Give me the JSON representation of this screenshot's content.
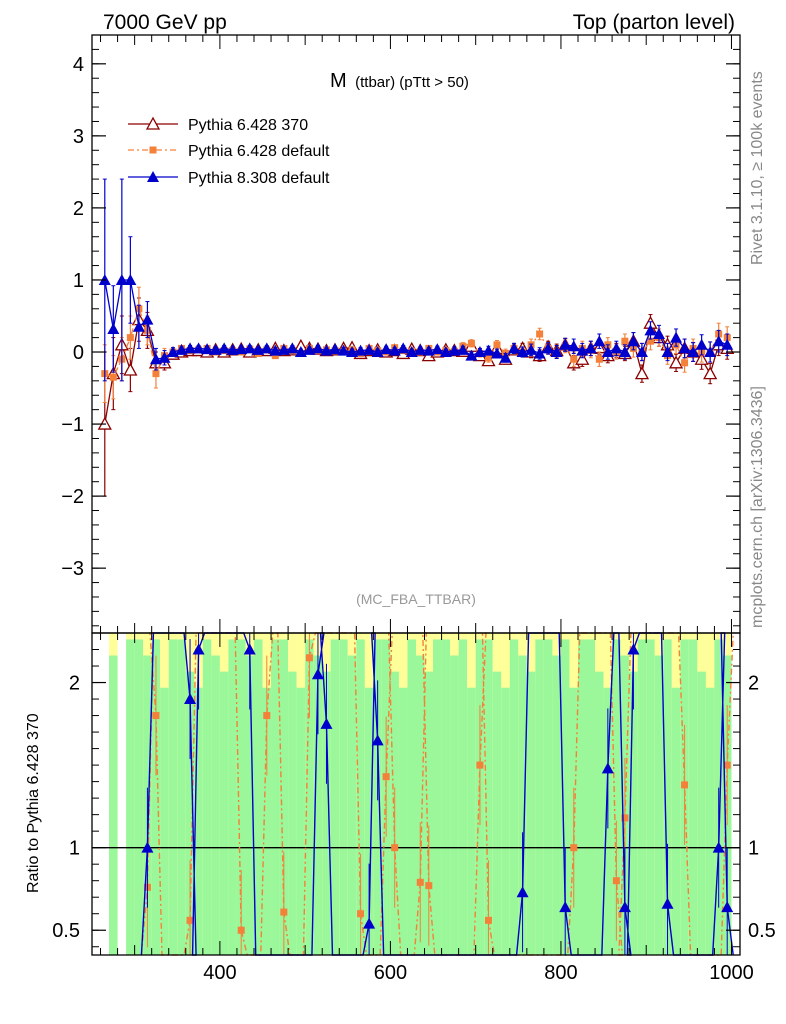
{
  "header": {
    "left": "7000 GeV pp",
    "right": "Top (parton level)"
  },
  "side_text": {
    "rivet": "Rivet 3.1.10, ≥ 100k events",
    "mcplots": "mcplots.cern.ch [arXiv:1306.3436]"
  },
  "plot": {
    "title_main": "M",
    "title_sub": "(ttbar) (pTtt > 50)",
    "analysis_tag": "(MC_FBA_TTBAR)",
    "ratio_ylabel": "Ratio to Pythia 6.428 370"
  },
  "colors": {
    "p6_370": "#8b0000",
    "p6_default": "#f4813a",
    "p8_default": "#0000cc",
    "band_green": "#9af79a",
    "band_yellow": "#ffff99"
  },
  "chart_data": [
    {
      "type": "line",
      "panel": "main",
      "xlim": [
        250,
        1010
      ],
      "ylim": [
        -3.9,
        4.4
      ],
      "yticks": [
        -3,
        -2,
        -1,
        0,
        1,
        2,
        3,
        4
      ],
      "xticks": [
        400,
        600,
        800,
        1000
      ],
      "legend_position": "top-left",
      "series": [
        {
          "name": "Pythia 6.428 370",
          "marker": "open-triangle",
          "x": [
            265,
            275,
            285,
            295,
            305,
            315,
            325,
            335,
            345,
            355,
            365,
            375,
            385,
            395,
            405,
            415,
            425,
            435,
            445,
            455,
            465,
            475,
            485,
            495,
            505,
            515,
            525,
            535,
            545,
            555,
            565,
            575,
            585,
            595,
            605,
            615,
            625,
            635,
            645,
            655,
            665,
            675,
            685,
            695,
            705,
            715,
            725,
            735,
            745,
            755,
            765,
            775,
            785,
            795,
            805,
            815,
            825,
            835,
            845,
            855,
            865,
            875,
            885,
            895,
            905,
            915,
            925,
            935,
            945,
            955,
            965,
            975,
            985,
            995
          ],
          "y": [
            -1.0,
            -0.3,
            0.1,
            -0.25,
            0.45,
            0.3,
            -0.15,
            -0.15,
            -0.03,
            0.0,
            0.02,
            0.02,
            0.0,
            0.03,
            0.0,
            0.03,
            0.04,
            0.0,
            0.03,
            0.02,
            0.05,
            0.02,
            0.03,
            0.08,
            0.05,
            0.04,
            0.02,
            0.03,
            0.05,
            0.06,
            -0.02,
            0.02,
            0.03,
            0.0,
            0.02,
            -0.02,
            0.04,
            0.02,
            -0.05,
            0.0,
            0.03,
            0.02,
            0.01,
            0.08,
            -0.05,
            -0.12,
            0.05,
            -0.1,
            0.03,
            0.05,
            0.0,
            -0.05,
            0.07,
            0.02,
            0.1,
            -0.15,
            -0.1,
            0.05,
            0.06,
            -0.05,
            0.02,
            -0.02,
            0.15,
            -0.3,
            0.4,
            0.2,
            0.1,
            -0.15,
            0.05,
            0.0,
            -0.1,
            -0.3,
            0.1,
            0.05
          ],
          "err": [
            1.0,
            0.5,
            0.4,
            0.3,
            0.3,
            0.25,
            0.15,
            0.1,
            0.06,
            0.04,
            0.04,
            0.04,
            0.04,
            0.04,
            0.04,
            0.04,
            0.04,
            0.04,
            0.04,
            0.04,
            0.04,
            0.04,
            0.04,
            0.04,
            0.04,
            0.04,
            0.04,
            0.04,
            0.04,
            0.04,
            0.04,
            0.04,
            0.04,
            0.04,
            0.04,
            0.04,
            0.04,
            0.04,
            0.04,
            0.04,
            0.04,
            0.05,
            0.05,
            0.05,
            0.05,
            0.06,
            0.06,
            0.06,
            0.07,
            0.07,
            0.08,
            0.08,
            0.08,
            0.09,
            0.09,
            0.1,
            0.1,
            0.1,
            0.1,
            0.1,
            0.1,
            0.1,
            0.12,
            0.12,
            0.12,
            0.12,
            0.12,
            0.12,
            0.13,
            0.13,
            0.14,
            0.14,
            0.15,
            0.15
          ]
        },
        {
          "name": "Pythia 6.428 default",
          "marker": "filled-square",
          "x": [
            265,
            275,
            285,
            295,
            305,
            315,
            325,
            335,
            345,
            355,
            365,
            375,
            385,
            395,
            405,
            415,
            425,
            435,
            445,
            455,
            465,
            475,
            485,
            495,
            505,
            515,
            525,
            535,
            545,
            555,
            565,
            575,
            585,
            595,
            605,
            615,
            625,
            635,
            645,
            655,
            665,
            675,
            685,
            695,
            705,
            715,
            725,
            735,
            745,
            755,
            765,
            775,
            785,
            795,
            805,
            815,
            825,
            835,
            845,
            855,
            865,
            875,
            885,
            895,
            905,
            915,
            925,
            935,
            945,
            955,
            965,
            975,
            985,
            995
          ],
          "y": [
            -0.3,
            -0.35,
            -0.1,
            0.2,
            0.6,
            0.3,
            -0.3,
            -0.05,
            0.0,
            0.05,
            0.02,
            0.03,
            0.05,
            0.0,
            0.02,
            0.02,
            0.0,
            0.04,
            -0.02,
            0.03,
            -0.05,
            0.05,
            0.02,
            -0.02,
            0.05,
            0.02,
            0.03,
            0.02,
            0.0,
            0.03,
            -0.02,
            0.05,
            0.02,
            0.0,
            0.06,
            0.02,
            0.01,
            0.0,
            0.05,
            0.0,
            0.02,
            0.01,
            0.08,
            0.12,
            -0.02,
            -0.08,
            0.1,
            -0.02,
            0.05,
            0.0,
            0.1,
            0.25,
            0.05,
            0.0,
            0.08,
            -0.1,
            0.05,
            0.02,
            -0.1,
            0.1,
            0.0,
            0.15,
            0.05,
            0.0,
            0.15,
            0.2,
            -0.05,
            0.1,
            -0.15,
            0.05,
            0.0,
            0.0,
            0.25,
            0.2
          ],
          "err": [
            0.4,
            0.3,
            0.3,
            0.3,
            0.3,
            0.2,
            0.2,
            0.1,
            0.06,
            0.04,
            0.04,
            0.04,
            0.04,
            0.04,
            0.04,
            0.04,
            0.04,
            0.04,
            0.04,
            0.04,
            0.04,
            0.04,
            0.04,
            0.04,
            0.04,
            0.04,
            0.04,
            0.04,
            0.04,
            0.04,
            0.04,
            0.04,
            0.04,
            0.04,
            0.04,
            0.04,
            0.04,
            0.04,
            0.04,
            0.04,
            0.04,
            0.05,
            0.05,
            0.05,
            0.05,
            0.06,
            0.06,
            0.06,
            0.07,
            0.07,
            0.08,
            0.08,
            0.08,
            0.09,
            0.09,
            0.1,
            0.1,
            0.1,
            0.1,
            0.1,
            0.1,
            0.1,
            0.12,
            0.12,
            0.12,
            0.12,
            0.12,
            0.12,
            0.13,
            0.13,
            0.14,
            0.14,
            0.15,
            0.15
          ]
        },
        {
          "name": "Pythia 8.308 default",
          "marker": "filled-triangle",
          "x": [
            265,
            275,
            285,
            295,
            305,
            315,
            325,
            335,
            345,
            355,
            365,
            375,
            385,
            395,
            405,
            415,
            425,
            435,
            445,
            455,
            465,
            475,
            485,
            495,
            505,
            515,
            525,
            535,
            545,
            555,
            565,
            575,
            585,
            595,
            605,
            615,
            625,
            635,
            645,
            655,
            665,
            675,
            685,
            695,
            705,
            715,
            725,
            735,
            745,
            755,
            765,
            775,
            785,
            795,
            805,
            815,
            825,
            835,
            845,
            855,
            865,
            875,
            885,
            895,
            905,
            915,
            925,
            935,
            945,
            955,
            965,
            975,
            985,
            995
          ],
          "y": [
            1.0,
            0.32,
            1.0,
            1.0,
            0.35,
            0.45,
            -0.1,
            -0.08,
            0.0,
            0.03,
            0.05,
            0.05,
            0.04,
            0.03,
            0.05,
            0.03,
            0.04,
            0.05,
            0.03,
            0.05,
            0.02,
            0.03,
            0.05,
            0.0,
            0.03,
            0.05,
            0.02,
            0.04,
            0.02,
            0.0,
            0.02,
            0.03,
            0.0,
            0.04,
            0.02,
            0.05,
            0.0,
            0.03,
            0.02,
            0.04,
            0.0,
            0.02,
            0.03,
            -0.05,
            0.0,
            0.02,
            -0.02,
            -0.08,
            0.05,
            0.0,
            0.03,
            -0.02,
            0.05,
            0.0,
            0.1,
            0.08,
            0.02,
            0.05,
            0.15,
            0.0,
            0.05,
            0.0,
            0.15,
            0.0,
            0.3,
            0.25,
            0.0,
            0.2,
            0.05,
            0.0,
            0.1,
            0.0,
            0.15,
            0.1
          ],
          "err": [
            1.4,
            0.6,
            1.4,
            0.6,
            0.3,
            0.25,
            0.15,
            0.1,
            0.06,
            0.04,
            0.04,
            0.04,
            0.04,
            0.04,
            0.04,
            0.04,
            0.04,
            0.04,
            0.04,
            0.04,
            0.04,
            0.04,
            0.04,
            0.04,
            0.04,
            0.04,
            0.04,
            0.04,
            0.04,
            0.04,
            0.04,
            0.04,
            0.04,
            0.04,
            0.04,
            0.04,
            0.04,
            0.04,
            0.04,
            0.04,
            0.04,
            0.05,
            0.05,
            0.05,
            0.05,
            0.06,
            0.06,
            0.06,
            0.07,
            0.07,
            0.08,
            0.08,
            0.08,
            0.09,
            0.09,
            0.1,
            0.1,
            0.1,
            0.1,
            0.1,
            0.1,
            0.1,
            0.12,
            0.12,
            0.12,
            0.12,
            0.12,
            0.12,
            0.13,
            0.13,
            0.14,
            0.14,
            0.15,
            0.15
          ]
        }
      ]
    },
    {
      "type": "line",
      "panel": "ratio",
      "xlim": [
        250,
        1010
      ],
      "ylim": [
        0.35,
        2.3
      ],
      "yticks": [
        0.5,
        1,
        2
      ],
      "xticks": [
        400,
        600,
        800,
        1000
      ],
      "reference": 1,
      "series": [
        {
          "name": "Pythia 6.428 default",
          "x": [
            315,
            325,
            365,
            425,
            455,
            475,
            505,
            565,
            595,
            605,
            635,
            645,
            705,
            715,
            815,
            865,
            875,
            945,
            995
          ],
          "y": [
            0.76,
            1.8,
            0.56,
            0.5,
            1.8,
            0.61,
            2.15,
            0.6,
            1.43,
            1.0,
            0.79,
            0.77,
            1.5,
            0.56,
            1.0,
            0.8,
            1.18,
            1.38,
            1.5
          ]
        },
        {
          "name": "Pythia 8.308 default",
          "x": [
            315,
            365,
            375,
            435,
            515,
            525,
            575,
            585,
            755,
            805,
            855,
            875,
            885,
            925,
            985,
            995
          ],
          "y": [
            1.0,
            1.9,
            2.2,
            2.2,
            2.05,
            1.75,
            0.54,
            1.65,
            0.73,
            0.64,
            1.48,
            0.64,
            2.2,
            0.66,
            1.0,
            0.64
          ]
        }
      ]
    }
  ]
}
